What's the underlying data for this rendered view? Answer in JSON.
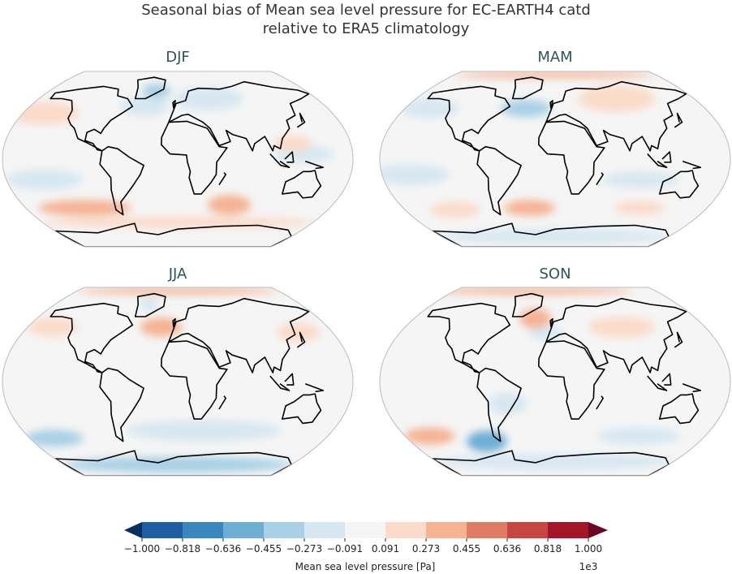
{
  "title_line1": "Seasonal bias of Mean sea level pressure for EC-EARTH4 catd",
  "title_line2": "relative to ERA5 climatology",
  "panels": [
    {
      "title": "DJF",
      "regions": [
        {
          "lon": -155,
          "lat": 45,
          "dlon": 40,
          "dlat": 12,
          "value": 200
        },
        {
          "lon": -40,
          "lat": 52,
          "dlon": 30,
          "dlat": 10,
          "value": -200
        },
        {
          "lon": -30,
          "lat": 68,
          "dlon": 20,
          "dlat": 8,
          "value": -300
        },
        {
          "lon": 40,
          "lat": 60,
          "dlon": 45,
          "dlat": 12,
          "value": -150
        },
        {
          "lon": -140,
          "lat": -20,
          "dlon": 40,
          "dlat": 10,
          "value": -200
        },
        {
          "lon": 130,
          "lat": 5,
          "dlon": 30,
          "dlat": 8,
          "value": -150
        },
        {
          "lon": -110,
          "lat": -48,
          "dlon": 55,
          "dlat": 8,
          "value": 350
        },
        {
          "lon": 60,
          "lat": -45,
          "dlon": 25,
          "dlat": 10,
          "value": 380
        },
        {
          "lon": 0,
          "lat": -63,
          "dlon": 180,
          "dlat": 6,
          "value": 250
        },
        {
          "lon": 120,
          "lat": 15,
          "dlon": 20,
          "dlat": 8,
          "value": 200
        }
      ]
    },
    {
      "title": "MAM",
      "regions": [
        {
          "lon": 80,
          "lat": 60,
          "dlon": 50,
          "dlat": 14,
          "value": 250
        },
        {
          "lon": 0,
          "lat": 86,
          "dlon": 180,
          "dlat": 5,
          "value": 320
        },
        {
          "lon": -35,
          "lat": 50,
          "dlon": 30,
          "dlat": 9,
          "value": -300
        },
        {
          "lon": -150,
          "lat": 50,
          "dlon": 35,
          "dlat": 10,
          "value": -150
        },
        {
          "lon": -150,
          "lat": -15,
          "dlon": 40,
          "dlat": 10,
          "value": -200
        },
        {
          "lon": 90,
          "lat": -20,
          "dlon": 40,
          "dlat": 8,
          "value": -150
        },
        {
          "lon": -30,
          "lat": -48,
          "dlon": 30,
          "dlat": 8,
          "value": 300
        },
        {
          "lon": -120,
          "lat": -50,
          "dlon": 30,
          "dlat": 8,
          "value": 220
        },
        {
          "lon": 100,
          "lat": -48,
          "dlon": 30,
          "dlat": 7,
          "value": 200
        },
        {
          "lon": 0,
          "lat": -78,
          "dlon": 180,
          "dlat": 8,
          "value": -250
        }
      ]
    },
    {
      "title": "JJA",
      "regions": [
        {
          "lon": 0,
          "lat": 86,
          "dlon": 180,
          "dlat": 6,
          "value": 400
        },
        {
          "lon": -20,
          "lat": 50,
          "dlon": 25,
          "dlat": 9,
          "value": 350
        },
        {
          "lon": -42,
          "lat": 72,
          "dlon": 14,
          "dlat": 7,
          "value": -250
        },
        {
          "lon": -150,
          "lat": 50,
          "dlon": 30,
          "dlat": 9,
          "value": 200
        },
        {
          "lon": 140,
          "lat": 45,
          "dlon": 25,
          "dlat": 9,
          "value": 200
        },
        {
          "lon": -150,
          "lat": -52,
          "dlon": 35,
          "dlat": 8,
          "value": -400
        },
        {
          "lon": 30,
          "lat": -45,
          "dlon": 90,
          "dlat": 10,
          "value": -200
        },
        {
          "lon": 0,
          "lat": -78,
          "dlon": 180,
          "dlat": 8,
          "value": -420
        }
      ]
    },
    {
      "title": "SON",
      "regions": [
        {
          "lon": -40,
          "lat": 86,
          "dlon": 180,
          "dlat": 6,
          "value": 350
        },
        {
          "lon": -25,
          "lat": 58,
          "dlon": 20,
          "dlat": 10,
          "value": 450
        },
        {
          "lon": -10,
          "lat": 44,
          "dlon": 20,
          "dlat": 6,
          "value": -250
        },
        {
          "lon": 80,
          "lat": 50,
          "dlon": 40,
          "dlat": 10,
          "value": 150
        },
        {
          "lon": -150,
          "lat": -50,
          "dlon": 30,
          "dlat": 8,
          "value": 450
        },
        {
          "lon": -85,
          "lat": -55,
          "dlon": 25,
          "dlat": 10,
          "value": -500
        },
        {
          "lon": -50,
          "lat": -20,
          "dlon": 20,
          "dlat": 10,
          "value": -150
        },
        {
          "lon": 100,
          "lat": -50,
          "dlon": 50,
          "dlat": 8,
          "value": -150
        },
        {
          "lon": 0,
          "lat": -75,
          "dlon": 180,
          "dlat": 8,
          "value": -220
        }
      ]
    }
  ],
  "colorbar": {
    "label": "Mean sea level pressure [Pa]",
    "scale": "1e3",
    "ticks": [
      "−1.000",
      "−0.818",
      "−0.636",
      "−0.455",
      "−0.273",
      "−0.091",
      "0.091",
      "0.273",
      "0.455",
      "0.636",
      "0.818",
      "1.000"
    ],
    "levels": [
      -1000,
      -818,
      -636,
      -455,
      -273,
      -91,
      91,
      273,
      455,
      636,
      818,
      1000
    ],
    "colors": [
      "#1d5fa2",
      "#3a87c0",
      "#6eaed4",
      "#a9d0e5",
      "#d7e7f1",
      "#f5f5f5",
      "#fbdbc9",
      "#f5b394",
      "#e07b64",
      "#c84641",
      "#a41627"
    ],
    "under_color": "#0a2f5e",
    "over_color": "#6a0624"
  }
}
